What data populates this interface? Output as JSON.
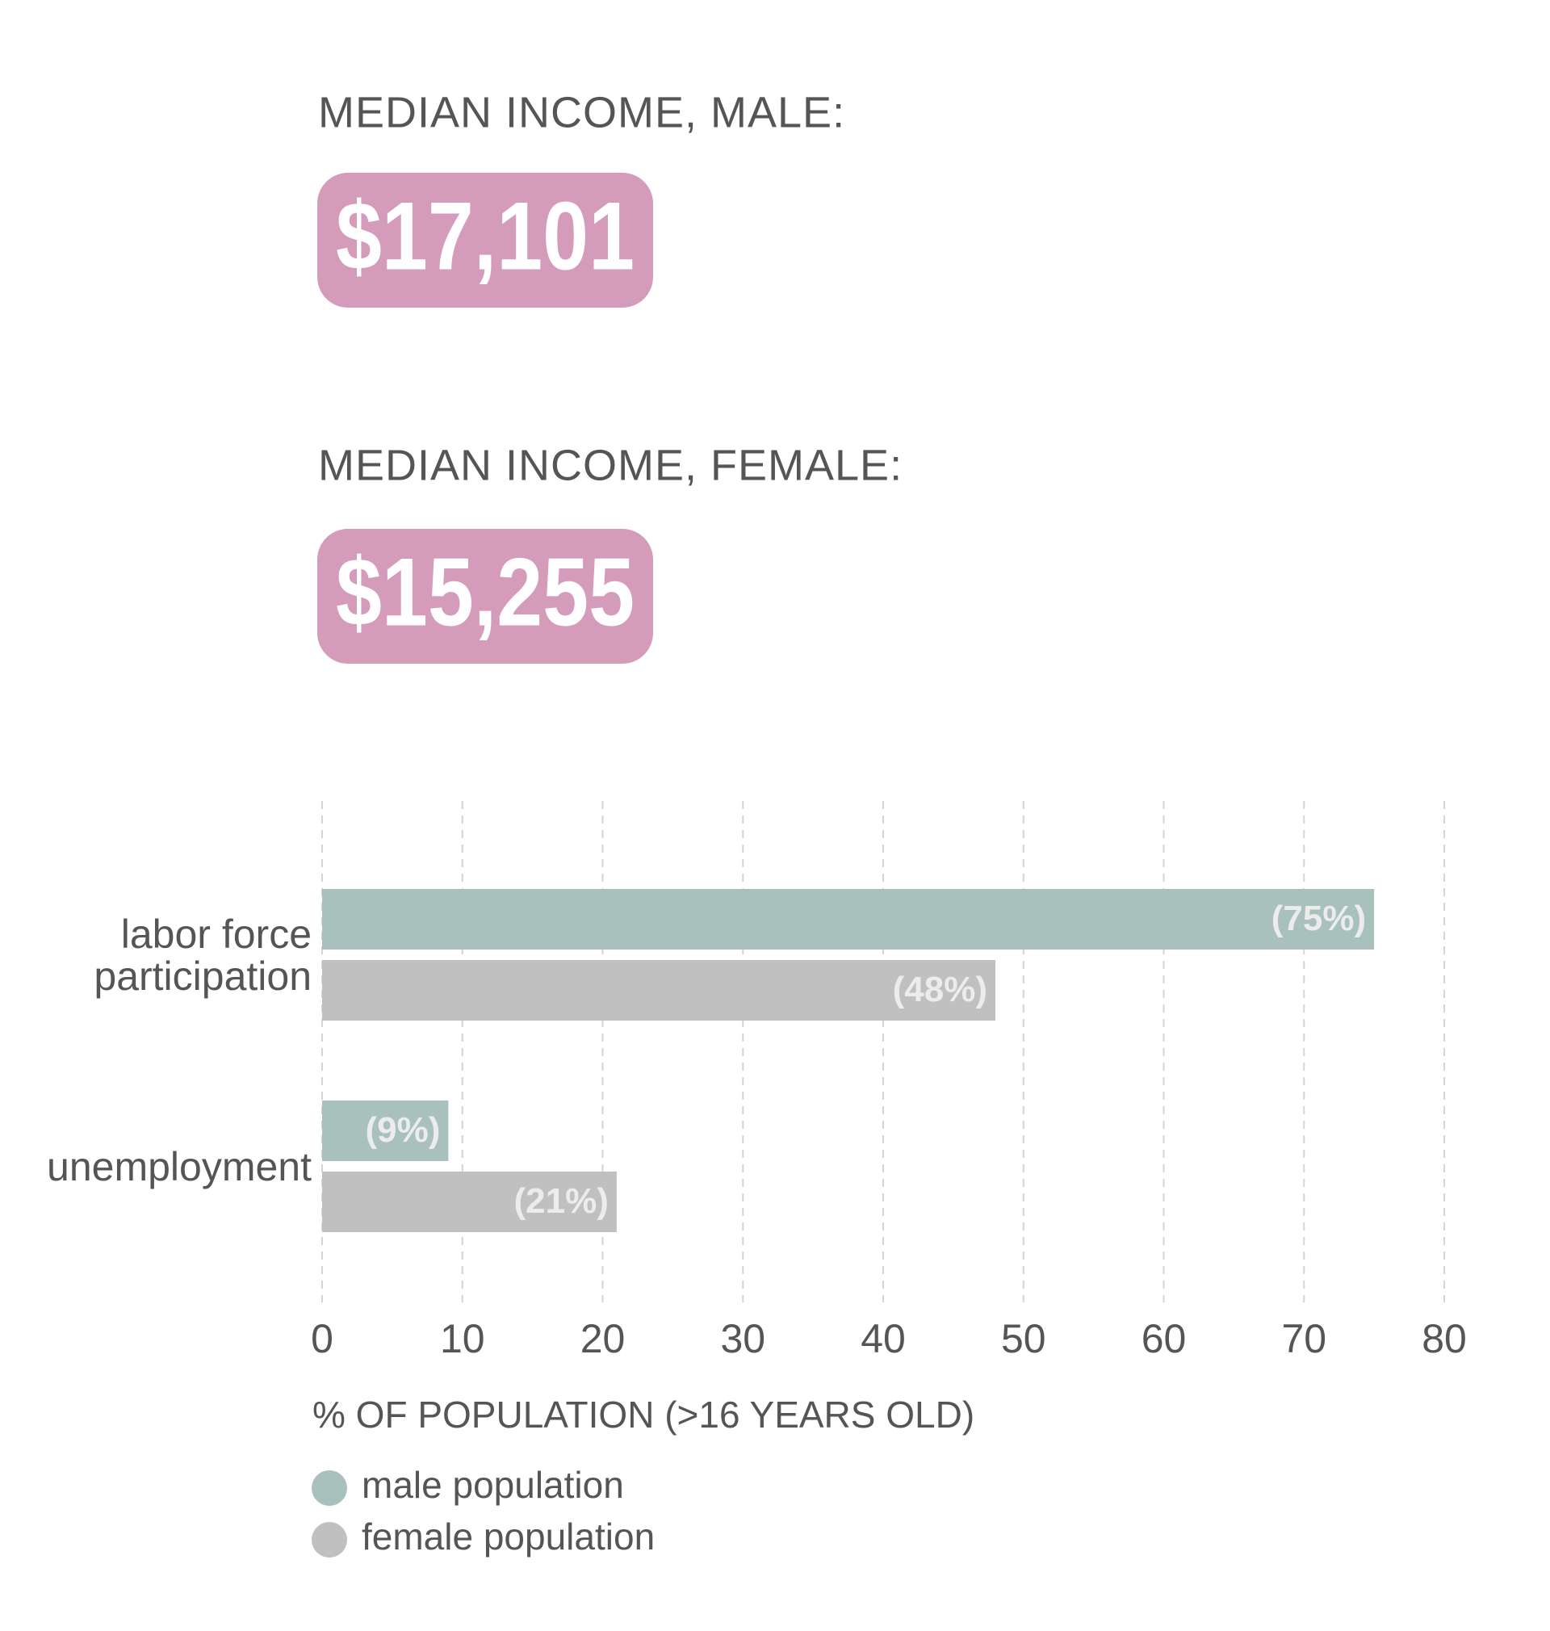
{
  "income": [
    {
      "label": "MEDIAN INCOME, MALE:",
      "value": "$17,101"
    },
    {
      "label": "MEDIAN INCOME, FEMALE:",
      "value": "$15,255"
    }
  ],
  "chart_data": {
    "type": "hbar",
    "categories": [
      "labor force participation",
      "unemployment"
    ],
    "series": [
      {
        "name": "male population",
        "color": "#a8c1bd",
        "values": [
          75,
          9
        ],
        "value_labels": [
          "(75%)",
          "(9%)"
        ]
      },
      {
        "name": "female population",
        "color": "#c0c0c0",
        "values": [
          48,
          21
        ],
        "value_labels": [
          "(48%)",
          "(21%)"
        ]
      }
    ],
    "xlabel": "% OF POPULATION (>16 YEARS OLD)",
    "xlim": [
      0,
      80
    ],
    "xticks": [
      0,
      10,
      20,
      30,
      40,
      50,
      60,
      70,
      80
    ],
    "grid": true
  }
}
